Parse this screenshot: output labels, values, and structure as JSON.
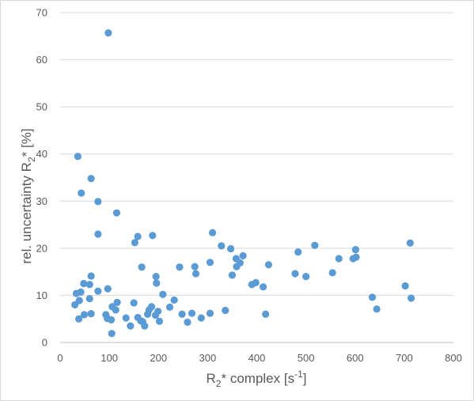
{
  "chart_data": {
    "type": "scatter",
    "title": "",
    "xlabel": {
      "base": "R",
      "sub": "2",
      "mid": "* complex [s",
      "sup": "-1",
      "end": "]"
    },
    "ylabel": {
      "base": "rel. uncertainty R",
      "sub": "2",
      "end": "* [%]"
    },
    "xlim": [
      0,
      800
    ],
    "ylim": [
      0,
      70
    ],
    "xticks": [
      0,
      100,
      200,
      300,
      400,
      500,
      600,
      700,
      800
    ],
    "yticks": [
      0,
      10,
      20,
      30,
      40,
      50,
      60,
      70
    ],
    "grid": {
      "horizontal": true,
      "vertical": false
    },
    "legend": "none",
    "marker_color": "#5b9bd5",
    "series": [
      {
        "values": [
          {
            "x": 98,
            "y": 65.7
          },
          {
            "x": 36,
            "y": 39.5
          },
          {
            "x": 63,
            "y": 34.8
          },
          {
            "x": 43,
            "y": 31.7
          },
          {
            "x": 77,
            "y": 29.9
          },
          {
            "x": 115,
            "y": 27.5
          },
          {
            "x": 77,
            "y": 23.0
          },
          {
            "x": 158,
            "y": 22.5
          },
          {
            "x": 188,
            "y": 22.7
          },
          {
            "x": 152,
            "y": 21.2
          },
          {
            "x": 166,
            "y": 16.0
          },
          {
            "x": 310,
            "y": 23.3
          },
          {
            "x": 328,
            "y": 20.5
          },
          {
            "x": 347,
            "y": 19.9
          },
          {
            "x": 358,
            "y": 17.8
          },
          {
            "x": 372,
            "y": 18.4
          },
          {
            "x": 305,
            "y": 17.0
          },
          {
            "x": 366,
            "y": 16.9
          },
          {
            "x": 359,
            "y": 16.1
          },
          {
            "x": 424,
            "y": 16.5
          },
          {
            "x": 350,
            "y": 14.3
          },
          {
            "x": 243,
            "y": 16.0
          },
          {
            "x": 274,
            "y": 16.1
          },
          {
            "x": 276,
            "y": 14.6
          },
          {
            "x": 195,
            "y": 14.0
          },
          {
            "x": 196,
            "y": 12.6
          },
          {
            "x": 390,
            "y": 12.3
          },
          {
            "x": 398,
            "y": 12.7
          },
          {
            "x": 413,
            "y": 11.8
          },
          {
            "x": 484,
            "y": 19.2
          },
          {
            "x": 518,
            "y": 20.6
          },
          {
            "x": 478,
            "y": 14.6
          },
          {
            "x": 500,
            "y": 14.0
          },
          {
            "x": 554,
            "y": 14.8
          },
          {
            "x": 567,
            "y": 17.8
          },
          {
            "x": 596,
            "y": 17.8
          },
          {
            "x": 601,
            "y": 19.7
          },
          {
            "x": 602,
            "y": 18.1
          },
          {
            "x": 712,
            "y": 21.1
          },
          {
            "x": 702,
            "y": 12.0
          },
          {
            "x": 635,
            "y": 9.6
          },
          {
            "x": 644,
            "y": 7.1
          },
          {
            "x": 714,
            "y": 9.4
          },
          {
            "x": 418,
            "y": 6.0
          },
          {
            "x": 336,
            "y": 6.8
          },
          {
            "x": 305,
            "y": 6.2
          },
          {
            "x": 287,
            "y": 5.2
          },
          {
            "x": 268,
            "y": 6.2
          },
          {
            "x": 259,
            "y": 4.3
          },
          {
            "x": 248,
            "y": 6.0
          },
          {
            "x": 232,
            "y": 9.0
          },
          {
            "x": 223,
            "y": 7.5
          },
          {
            "x": 209,
            "y": 10.2
          },
          {
            "x": 202,
            "y": 4.5
          },
          {
            "x": 199,
            "y": 6.6
          },
          {
            "x": 194,
            "y": 5.8
          },
          {
            "x": 186,
            "y": 7.6
          },
          {
            "x": 181,
            "y": 6.9
          },
          {
            "x": 178,
            "y": 6.0
          },
          {
            "x": 172,
            "y": 3.5
          },
          {
            "x": 168,
            "y": 4.4
          },
          {
            "x": 164,
            "y": 4.6
          },
          {
            "x": 158,
            "y": 5.3
          },
          {
            "x": 150,
            "y": 8.4
          },
          {
            "x": 143,
            "y": 3.5
          },
          {
            "x": 134,
            "y": 5.2
          },
          {
            "x": 116,
            "y": 8.5
          },
          {
            "x": 113,
            "y": 6.9
          },
          {
            "x": 106,
            "y": 7.6
          },
          {
            "x": 104,
            "y": 4.8
          },
          {
            "x": 105,
            "y": 1.9
          },
          {
            "x": 97,
            "y": 11.4
          },
          {
            "x": 96,
            "y": 5.1
          },
          {
            "x": 93,
            "y": 5.9
          },
          {
            "x": 77,
            "y": 10.9
          },
          {
            "x": 63,
            "y": 14.1
          },
          {
            "x": 60,
            "y": 12.3
          },
          {
            "x": 60,
            "y": 9.3
          },
          {
            "x": 63,
            "y": 6.1
          },
          {
            "x": 48,
            "y": 12.5
          },
          {
            "x": 49,
            "y": 5.9
          },
          {
            "x": 42,
            "y": 10.7
          },
          {
            "x": 39,
            "y": 8.9
          },
          {
            "x": 38,
            "y": 5.0
          },
          {
            "x": 33,
            "y": 10.4
          },
          {
            "x": 30,
            "y": 8.0
          }
        ]
      }
    ]
  }
}
